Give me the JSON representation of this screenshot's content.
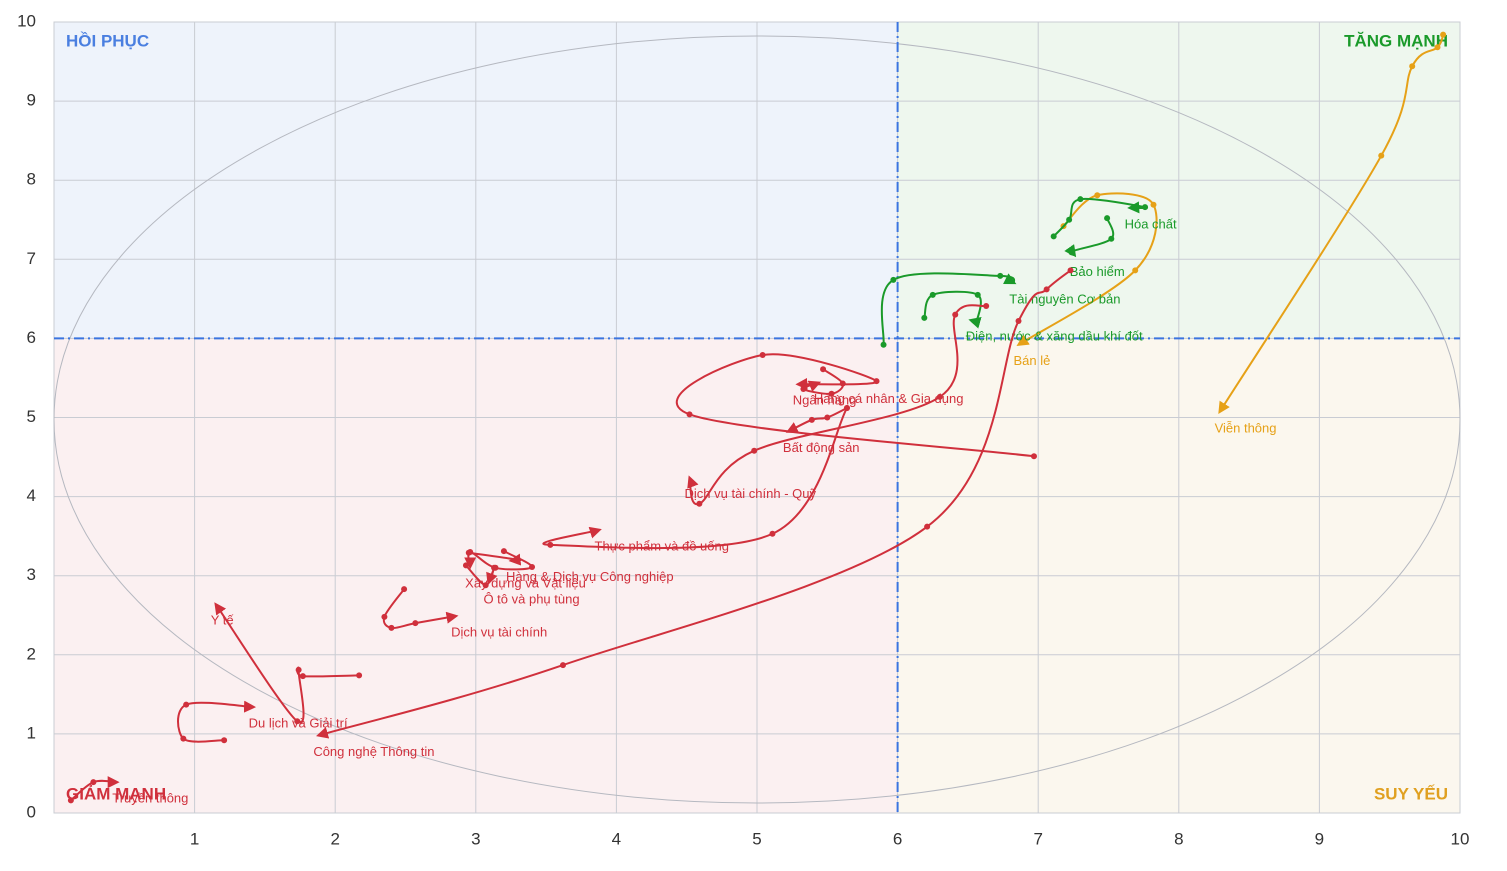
{
  "chart_data": {
    "type": "line",
    "xlim": [
      0,
      10
    ],
    "ylim": [
      0,
      10
    ],
    "xticks": [
      1,
      2,
      3,
      4,
      5,
      6,
      7,
      8,
      9,
      10
    ],
    "yticks": [
      0,
      1,
      2,
      3,
      4,
      5,
      6,
      7,
      8,
      9,
      10
    ],
    "center_x": 6,
    "center_y": 6,
    "grid": true,
    "quadrants": [
      {
        "name": "HỒI PHỤC",
        "color": "#4a7fe0"
      },
      {
        "name": "TĂNG MẠNH",
        "color": "#1a9a2a"
      },
      {
        "name": "GIẢM MẠNH",
        "color": "#d0303c"
      },
      {
        "name": "SUY YẾU",
        "color": "#e0a020"
      }
    ],
    "series": [
      {
        "name": "Viễn thông",
        "color": "#e6a117",
        "x": [
          9.88,
          9.84,
          9.66,
          9.44,
          8.29
        ],
        "y": [
          9.84,
          9.68,
          9.44,
          8.31,
          5.07
        ]
      },
      {
        "name": "Bán lẻ",
        "color": "#e6a117",
        "x": [
          7.18,
          7.42,
          7.82,
          7.69,
          6.86
        ],
        "y": [
          7.42,
          7.81,
          7.69,
          6.86,
          5.92
        ]
      },
      {
        "name": "Hóa chất",
        "color": "#1a9a2a",
        "x": [
          7.11,
          7.22,
          7.3,
          7.76,
          7.65
        ],
        "y": [
          7.29,
          7.5,
          7.76,
          7.66,
          7.65
        ]
      },
      {
        "name": "Bảo hiểm",
        "color": "#1a9a2a",
        "x": [
          7.49,
          7.52,
          7.24,
          7.26
        ],
        "y": [
          7.52,
          7.26,
          7.1,
          7.05
        ]
      },
      {
        "name": "Tài nguyên Cơ bản",
        "color": "#1a9a2a",
        "x": [
          5.9,
          5.97,
          6.73,
          6.83
        ],
        "y": [
          5.92,
          6.74,
          6.79,
          6.7
        ]
      },
      {
        "name": "Điện, nước & xăng dầu khí đốt",
        "color": "#1a9a2a",
        "x": [
          6.19,
          6.25,
          6.57,
          6.56,
          6.52
        ],
        "y": [
          6.26,
          6.55,
          6.55,
          6.21,
          6.23
        ]
      },
      {
        "name": "Công nghệ Thông tin",
        "color": "#d0303c",
        "x": [
          7.23,
          7.06,
          6.86,
          6.21,
          3.62,
          1.88
        ],
        "y": [
          6.86,
          6.62,
          6.22,
          3.62,
          1.87,
          0.98
        ]
      },
      {
        "name": "Ngân hàng",
        "color": "#d0303c",
        "x": [
          6.97,
          4.52,
          5.04,
          5.85,
          5.29
        ],
        "y": [
          4.51,
          5.04,
          5.79,
          5.46,
          5.42
        ]
      },
      {
        "name": "Bất động sản",
        "color": "#d0303c",
        "x": [
          5.64,
          5.5,
          5.39,
          5.22
        ],
        "y": [
          5.12,
          5.0,
          4.97,
          4.82
        ]
      },
      {
        "name": "Hàng cá nhân & Gia dụng",
        "color": "#d0303c",
        "x": [
          5.47,
          5.61,
          5.53,
          5.33,
          5.44
        ],
        "y": [
          5.61,
          5.43,
          5.3,
          5.36,
          5.44
        ]
      },
      {
        "name": "Dịch vụ tài chính - Quỹ",
        "color": "#d0303c",
        "x": [
          6.63,
          6.41,
          6.3,
          4.98,
          4.59,
          4.52
        ],
        "y": [
          6.41,
          6.3,
          5.26,
          4.58,
          3.91,
          4.24
        ]
      },
      {
        "name": "Thực phẩm và đồ uống",
        "color": "#d0303c",
        "x": [
          5.64,
          5.11,
          3.53,
          3.88
        ],
        "y": [
          5.12,
          3.53,
          3.39,
          3.58
        ]
      },
      {
        "name": "Xây dựng và Vật liệu",
        "color": "#d0303c",
        "x": [
          3.2,
          3.4,
          3.14,
          2.96,
          2.96
        ],
        "y": [
          3.31,
          3.11,
          3.1,
          3.3,
          3.11
        ]
      },
      {
        "name": "Ô tô và phụ tùng",
        "color": "#d0303c",
        "x": [
          2.93,
          3.07,
          3.13,
          3.09
        ],
        "y": [
          3.13,
          2.88,
          3.1,
          2.91
        ]
      },
      {
        "name": "Hàng & Dịch vụ Công nghiệp",
        "color": "#d0303c",
        "x": [
          2.95,
          3.3,
          3.25
        ],
        "y": [
          3.29,
          3.2,
          3.19
        ]
      },
      {
        "name": "Dịch vụ tài chính",
        "color": "#d0303c",
        "x": [
          2.49,
          2.35,
          2.4,
          2.57,
          2.86
        ],
        "y": [
          2.83,
          2.48,
          2.34,
          2.4,
          2.49
        ]
      },
      {
        "name": "Y tế",
        "color": "#d0303c",
        "x": [
          2.17,
          1.77,
          1.74,
          1.73,
          1.15
        ],
        "y": [
          1.74,
          1.73,
          1.81,
          1.16,
          2.64
        ]
      },
      {
        "name": "Du lịch và Giải trí",
        "color": "#d0303c",
        "x": [
          1.21,
          0.92,
          0.94,
          1.42
        ],
        "y": [
          0.92,
          0.94,
          1.37,
          1.34
        ]
      },
      {
        "name": "Truyền thông",
        "color": "#d0303c",
        "x": [
          0.12,
          0.28,
          0.45
        ],
        "y": [
          0.16,
          0.39,
          0.39
        ]
      }
    ]
  }
}
